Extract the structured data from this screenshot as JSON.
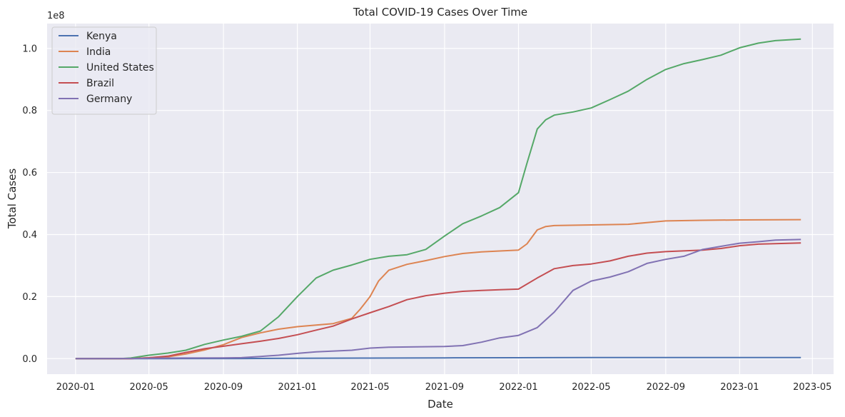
{
  "chart_data": {
    "type": "line",
    "title": "Total COVID-19 Cases Over Time",
    "xlabel": "Date",
    "ylabel": "Total Cases",
    "y_offset_label": "1e8",
    "xlim": [
      "2019-11-15",
      "2023-06-05"
    ],
    "ylim": [
      -0.05,
      1.08
    ],
    "x_ticks": [
      "2020-01-01",
      "2020-05-01",
      "2020-09-01",
      "2021-01-01",
      "2021-05-01",
      "2021-09-01",
      "2022-01-01",
      "2022-05-01",
      "2022-09-01",
      "2023-01-01",
      "2023-05-01"
    ],
    "x_tick_labels": [
      "2020-01",
      "2020-05",
      "2020-09",
      "2021-01",
      "2021-05",
      "2021-09",
      "2022-01",
      "2022-05",
      "2022-09",
      "2023-01",
      "2023-05"
    ],
    "y_ticks": [
      0.0,
      0.2,
      0.4,
      0.6,
      0.8,
      1.0
    ],
    "y_tick_labels": [
      "0.0",
      "0.2",
      "0.4",
      "0.6",
      "0.8",
      "1.0"
    ],
    "grid": true,
    "legend_position": "top-left",
    "background": "#eaeaf2",
    "series": [
      {
        "name": "Kenya",
        "color": "#4c72b0",
        "points": [
          [
            "2020-01-01",
            0
          ],
          [
            "2020-06-01",
            0.0001
          ],
          [
            "2020-10-01",
            0.0004
          ],
          [
            "2021-01-01",
            0.001
          ],
          [
            "2021-05-01",
            0.0017
          ],
          [
            "2021-09-01",
            0.0024
          ],
          [
            "2022-01-01",
            0.003
          ],
          [
            "2022-05-01",
            0.0033
          ],
          [
            "2022-09-01",
            0.0034
          ],
          [
            "2023-01-01",
            0.0034
          ],
          [
            "2023-04-12",
            0.0034
          ]
        ]
      },
      {
        "name": "India",
        "color": "#dd8452",
        "points": [
          [
            "2020-01-01",
            0
          ],
          [
            "2020-04-01",
            2e-05
          ],
          [
            "2020-06-01",
            0.006
          ],
          [
            "2020-07-01",
            0.015
          ],
          [
            "2020-08-01",
            0.028
          ],
          [
            "2020-09-01",
            0.045
          ],
          [
            "2020-10-01",
            0.068
          ],
          [
            "2020-11-01",
            0.083
          ],
          [
            "2020-12-01",
            0.095
          ],
          [
            "2021-01-01",
            0.103
          ],
          [
            "2021-02-01",
            0.108
          ],
          [
            "2021-03-01",
            0.113
          ],
          [
            "2021-04-01",
            0.13
          ],
          [
            "2021-04-15",
            0.16
          ],
          [
            "2021-05-01",
            0.2
          ],
          [
            "2021-05-15",
            0.25
          ],
          [
            "2021-06-01",
            0.285
          ],
          [
            "2021-07-01",
            0.304
          ],
          [
            "2021-08-01",
            0.316
          ],
          [
            "2021-09-01",
            0.329
          ],
          [
            "2021-10-01",
            0.339
          ],
          [
            "2021-11-01",
            0.344
          ],
          [
            "2021-12-01",
            0.347
          ],
          [
            "2022-01-01",
            0.35
          ],
          [
            "2022-01-15",
            0.37
          ],
          [
            "2022-02-01",
            0.415
          ],
          [
            "2022-02-15",
            0.426
          ],
          [
            "2022-03-01",
            0.429
          ],
          [
            "2022-05-01",
            0.431
          ],
          [
            "2022-07-01",
            0.433
          ],
          [
            "2022-09-01",
            0.444
          ],
          [
            "2022-11-01",
            0.446
          ],
          [
            "2023-01-01",
            0.447
          ],
          [
            "2023-04-12",
            0.448
          ]
        ]
      },
      {
        "name": "United States",
        "color": "#55a868",
        "points": [
          [
            "2020-01-01",
            0
          ],
          [
            "2020-03-15",
            0.0001
          ],
          [
            "2020-04-01",
            0.002
          ],
          [
            "2020-05-01",
            0.011
          ],
          [
            "2020-06-01",
            0.018
          ],
          [
            "2020-07-01",
            0.027
          ],
          [
            "2020-08-01",
            0.046
          ],
          [
            "2020-09-01",
            0.06
          ],
          [
            "2020-10-01",
            0.072
          ],
          [
            "2020-11-01",
            0.089
          ],
          [
            "2020-12-01",
            0.135
          ],
          [
            "2021-01-01",
            0.2
          ],
          [
            "2021-02-01",
            0.26
          ],
          [
            "2021-03-01",
            0.285
          ],
          [
            "2021-04-01",
            0.302
          ],
          [
            "2021-05-01",
            0.32
          ],
          [
            "2021-06-01",
            0.33
          ],
          [
            "2021-07-01",
            0.335
          ],
          [
            "2021-08-01",
            0.352
          ],
          [
            "2021-09-01",
            0.395
          ],
          [
            "2021-10-01",
            0.435
          ],
          [
            "2021-11-01",
            0.46
          ],
          [
            "2021-12-01",
            0.487
          ],
          [
            "2022-01-01",
            0.535
          ],
          [
            "2022-01-15",
            0.63
          ],
          [
            "2022-02-01",
            0.74
          ],
          [
            "2022-02-15",
            0.77
          ],
          [
            "2022-03-01",
            0.785
          ],
          [
            "2022-04-01",
            0.795
          ],
          [
            "2022-05-01",
            0.808
          ],
          [
            "2022-06-01",
            0.835
          ],
          [
            "2022-07-01",
            0.862
          ],
          [
            "2022-08-01",
            0.9
          ],
          [
            "2022-09-01",
            0.932
          ],
          [
            "2022-10-01",
            0.951
          ],
          [
            "2022-11-01",
            0.964
          ],
          [
            "2022-12-01",
            0.978
          ],
          [
            "2023-01-01",
            1.002
          ],
          [
            "2023-02-01",
            1.017
          ],
          [
            "2023-03-01",
            1.025
          ],
          [
            "2023-04-12",
            1.03
          ]
        ]
      },
      {
        "name": "Brazil",
        "color": "#c44e52",
        "points": [
          [
            "2020-01-01",
            0
          ],
          [
            "2020-04-01",
            0.0001
          ],
          [
            "2020-05-01",
            0.003
          ],
          [
            "2020-06-01",
            0.008
          ],
          [
            "2020-07-01",
            0.02
          ],
          [
            "2020-08-01",
            0.032
          ],
          [
            "2020-09-01",
            0.04
          ],
          [
            "2020-10-01",
            0.048
          ],
          [
            "2020-11-01",
            0.056
          ],
          [
            "2020-12-01",
            0.065
          ],
          [
            "2021-01-01",
            0.077
          ],
          [
            "2021-02-01",
            0.092
          ],
          [
            "2021-03-01",
            0.105
          ],
          [
            "2021-04-01",
            0.128
          ],
          [
            "2021-05-01",
            0.148
          ],
          [
            "2021-06-01",
            0.168
          ],
          [
            "2021-07-01",
            0.19
          ],
          [
            "2021-08-01",
            0.203
          ],
          [
            "2021-09-01",
            0.211
          ],
          [
            "2021-10-01",
            0.217
          ],
          [
            "2021-11-01",
            0.22
          ],
          [
            "2021-12-01",
            0.222
          ],
          [
            "2022-01-01",
            0.224
          ],
          [
            "2022-02-01",
            0.26
          ],
          [
            "2022-03-01",
            0.29
          ],
          [
            "2022-04-01",
            0.3
          ],
          [
            "2022-05-01",
            0.305
          ],
          [
            "2022-06-01",
            0.315
          ],
          [
            "2022-07-01",
            0.33
          ],
          [
            "2022-08-01",
            0.34
          ],
          [
            "2022-09-01",
            0.345
          ],
          [
            "2022-11-01",
            0.35
          ],
          [
            "2022-12-01",
            0.355
          ],
          [
            "2023-01-01",
            0.364
          ],
          [
            "2023-02-01",
            0.369
          ],
          [
            "2023-04-12",
            0.373
          ]
        ]
      },
      {
        "name": "Germany",
        "color": "#8172b3",
        "points": [
          [
            "2020-01-01",
            0
          ],
          [
            "2020-04-01",
            0.0005
          ],
          [
            "2020-06-01",
            0.0018
          ],
          [
            "2020-09-01",
            0.0025
          ],
          [
            "2020-10-01",
            0.0032
          ],
          [
            "2020-11-01",
            0.007
          ],
          [
            "2020-12-01",
            0.011
          ],
          [
            "2021-01-01",
            0.017
          ],
          [
            "2021-02-01",
            0.022
          ],
          [
            "2021-04-01",
            0.027
          ],
          [
            "2021-05-01",
            0.034
          ],
          [
            "2021-06-01",
            0.037
          ],
          [
            "2021-09-01",
            0.039
          ],
          [
            "2021-10-01",
            0.042
          ],
          [
            "2021-11-01",
            0.053
          ],
          [
            "2021-12-01",
            0.067
          ],
          [
            "2022-01-01",
            0.075
          ],
          [
            "2022-02-01",
            0.1
          ],
          [
            "2022-03-01",
            0.15
          ],
          [
            "2022-04-01",
            0.22
          ],
          [
            "2022-05-01",
            0.25
          ],
          [
            "2022-06-01",
            0.263
          ],
          [
            "2022-07-01",
            0.28
          ],
          [
            "2022-08-01",
            0.307
          ],
          [
            "2022-09-01",
            0.32
          ],
          [
            "2022-10-01",
            0.33
          ],
          [
            "2022-11-01",
            0.352
          ],
          [
            "2022-12-01",
            0.362
          ],
          [
            "2023-01-01",
            0.372
          ],
          [
            "2023-02-01",
            0.377
          ],
          [
            "2023-03-01",
            0.382
          ],
          [
            "2023-04-12",
            0.384
          ]
        ]
      }
    ]
  }
}
